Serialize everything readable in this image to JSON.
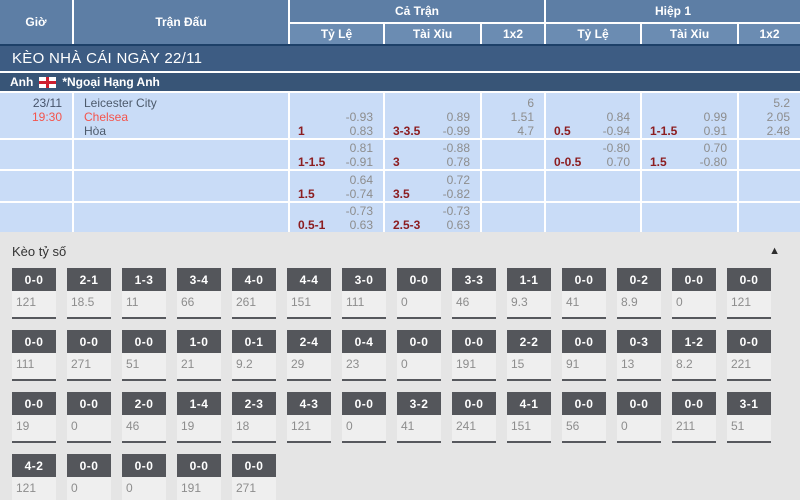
{
  "header": {
    "col_time": "Giờ",
    "col_match": "Trận Đấu",
    "group_full": "Cả Trận",
    "group_half": "Hiệp 1",
    "sub_odds": "Tỷ Lệ",
    "sub_ou": "Tài Xỉu",
    "sub_1x2": "1x2"
  },
  "section_title": "KÈO NHÀ CÁI NGÀY 22/11",
  "league": {
    "country": "Anh",
    "flag": "england-flag",
    "name": "*Ngoại Hạng Anh"
  },
  "match": {
    "date": "23/11",
    "time": "19:30",
    "home": "Leicester City",
    "away": "Chelsea",
    "draw_label": "Hòa"
  },
  "odds_rows": [
    {
      "ft_hdp": {
        "line": "1",
        "odds": [
          "-0.93",
          "0.83"
        ]
      },
      "ft_ou": {
        "line": "3-3.5",
        "odds": [
          "0.89",
          "-0.99"
        ]
      },
      "ft_1x2": [
        "6",
        "1.51",
        "4.7"
      ],
      "h1_hdp": {
        "line": "0.5",
        "odds": [
          "0.84",
          "-0.94"
        ]
      },
      "h1_ou": {
        "line": "1-1.5",
        "odds": [
          "0.99",
          "0.91"
        ]
      },
      "h1_1x2": [
        "5.2",
        "2.05",
        "2.48"
      ]
    },
    {
      "ft_hdp": {
        "line": "1-1.5",
        "odds": [
          "0.81",
          "-0.91"
        ]
      },
      "ft_ou": {
        "line": "3",
        "odds": [
          "-0.88",
          "0.78"
        ]
      },
      "ft_1x2": [],
      "h1_hdp": {
        "line": "0-0.5",
        "odds": [
          "-0.80",
          "0.70"
        ]
      },
      "h1_ou": {
        "line": "1.5",
        "odds": [
          "0.70",
          "-0.80"
        ]
      },
      "h1_1x2": []
    },
    {
      "ft_hdp": {
        "line": "1.5",
        "odds": [
          "0.64",
          "-0.74"
        ]
      },
      "ft_ou": {
        "line": "3.5",
        "odds": [
          "0.72",
          "-0.82"
        ]
      },
      "ft_1x2": [],
      "h1_hdp": null,
      "h1_ou": null,
      "h1_1x2": []
    },
    {
      "ft_hdp": {
        "line": "0.5-1",
        "odds": [
          "-0.73",
          "0.63"
        ]
      },
      "ft_ou": {
        "line": "2.5-3",
        "odds": [
          "-0.73",
          "0.63"
        ]
      },
      "ft_1x2": [],
      "h1_hdp": null,
      "h1_ou": null,
      "h1_1x2": []
    }
  ],
  "score_section": {
    "title": "Kèo tỷ số",
    "collapse_icon": "▲",
    "rows": [
      [
        {
          "score": "0-0",
          "odds": "121"
        },
        {
          "score": "2-1",
          "odds": "18.5"
        },
        {
          "score": "1-3",
          "odds": "11"
        },
        {
          "score": "3-4",
          "odds": "66"
        },
        {
          "score": "4-0",
          "odds": "261"
        },
        {
          "score": "4-4",
          "odds": "151"
        },
        {
          "score": "3-0",
          "odds": "111"
        },
        {
          "score": "0-0",
          "odds": "0"
        },
        {
          "score": "3-3",
          "odds": "46"
        },
        {
          "score": "1-1",
          "odds": "9.3"
        },
        {
          "score": "0-0",
          "odds": "41"
        },
        {
          "score": "0-2",
          "odds": "8.9"
        },
        {
          "score": "0-0",
          "odds": "0"
        },
        {
          "score": "0-0",
          "odds": "121"
        }
      ],
      [
        {
          "score": "0-0",
          "odds": "111"
        },
        {
          "score": "0-0",
          "odds": "271"
        },
        {
          "score": "0-0",
          "odds": "51"
        },
        {
          "score": "1-0",
          "odds": "21"
        },
        {
          "score": "0-1",
          "odds": "9.2"
        },
        {
          "score": "2-4",
          "odds": "29"
        },
        {
          "score": "0-4",
          "odds": "23"
        },
        {
          "score": "0-0",
          "odds": "0"
        },
        {
          "score": "0-0",
          "odds": "191"
        },
        {
          "score": "2-2",
          "odds": "15"
        },
        {
          "score": "0-0",
          "odds": "91"
        },
        {
          "score": "0-3",
          "odds": "13"
        },
        {
          "score": "1-2",
          "odds": "8.2"
        },
        {
          "score": "0-0",
          "odds": "221"
        }
      ],
      [
        {
          "score": "0-0",
          "odds": "19"
        },
        {
          "score": "0-0",
          "odds": "0"
        },
        {
          "score": "2-0",
          "odds": "46"
        },
        {
          "score": "1-4",
          "odds": "19"
        },
        {
          "score": "2-3",
          "odds": "18"
        },
        {
          "score": "4-3",
          "odds": "121"
        },
        {
          "score": "0-0",
          "odds": "0"
        },
        {
          "score": "3-2",
          "odds": "41"
        },
        {
          "score": "0-0",
          "odds": "241"
        },
        {
          "score": "4-1",
          "odds": "151"
        },
        {
          "score": "0-0",
          "odds": "56"
        },
        {
          "score": "0-0",
          "odds": "0"
        },
        {
          "score": "0-0",
          "odds": "211"
        },
        {
          "score": "3-1",
          "odds": "51"
        }
      ],
      [
        {
          "score": "4-2",
          "odds": "121"
        },
        {
          "score": "0-0",
          "odds": "0"
        },
        {
          "score": "0-0",
          "odds": "0"
        },
        {
          "score": "0-0",
          "odds": "191"
        },
        {
          "score": "0-0",
          "odds": "271"
        }
      ]
    ]
  },
  "colors": {
    "header_blue": "#5d7ea5",
    "subheader_blue": "#6b8cb2",
    "section_bar_blue": "#3d5c83",
    "league_bar_blue": "#385577",
    "row_blue": "#c9dcf7",
    "handicap_maroon": "#8c1d20",
    "odds_gray": "#8d8d8d",
    "accent_red": "#f4544c",
    "badge_gray": "#54565b",
    "score_bg": "#e5e5e5"
  }
}
